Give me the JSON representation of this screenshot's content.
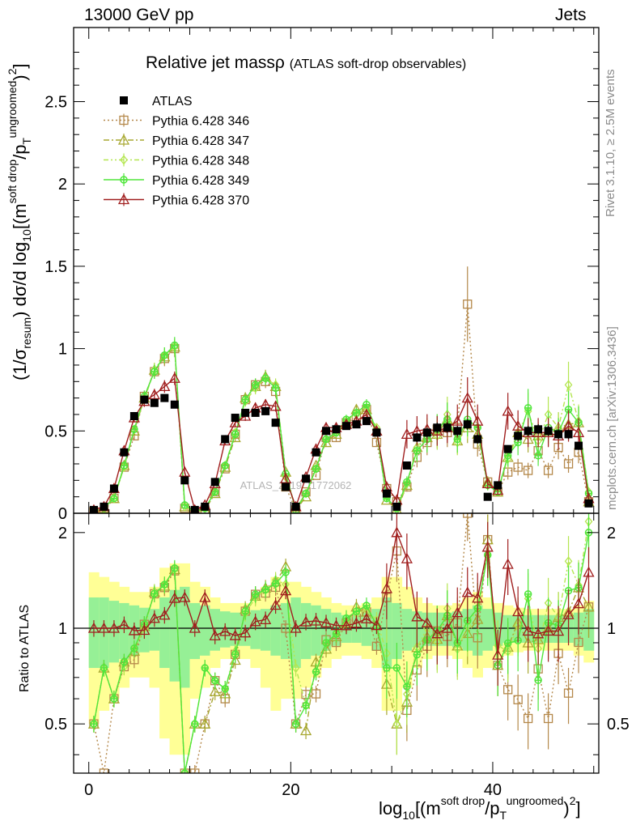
{
  "header": {
    "energy": "13000 GeV pp",
    "process": "Jets",
    "rivet": "Rivet 3.1.10, ≥ 2.5M events",
    "mcplots": "mcplots.cern.ch [arXiv:1306.3436]"
  },
  "chart_data": {
    "type": "line",
    "title": "Relative jet massρ",
    "subtitle": "(ATLAS soft-drop observables)",
    "watermark": "ATLAS_2019_I1772062",
    "ylabel_top": "(1/σ_resum) dσ/d log10[(m^soft drop/p_T^ungroomed)^2]",
    "ylabel_ratio": "Ratio to ATLAS",
    "xlabel": "log10[(m^soft drop/p_T^ungroomed)^2]",
    "xlim": [
      -1.5,
      50.5
    ],
    "ylim_top": [
      0,
      2.95
    ],
    "ylim_ratio": [
      0.35,
      2.3
    ],
    "ratio_scale": "log",
    "x_ticks": [
      "0",
      "20",
      "40"
    ],
    "y_ticks_top": [
      "0",
      "0.5",
      "1",
      "1.5",
      "2",
      "2.5"
    ],
    "y_ticks_ratio": [
      "0.5",
      "1",
      "2"
    ],
    "legend_position": "top-left",
    "x": [
      0.5,
      1.5,
      2.5,
      3.5,
      4.5,
      5.5,
      6.5,
      7.5,
      8.5,
      9.5,
      10.5,
      11.5,
      12.5,
      13.5,
      14.5,
      15.5,
      16.5,
      17.5,
      18.5,
      19.5,
      20.5,
      21.5,
      22.5,
      23.5,
      24.5,
      25.5,
      26.5,
      27.5,
      28.5,
      29.5,
      30.5,
      31.5,
      32.5,
      33.5,
      34.5,
      35.5,
      36.5,
      37.5,
      38.5,
      39.5,
      40.5,
      41.5,
      42.5,
      43.5,
      44.5,
      45.5,
      46.5,
      47.5,
      48.5,
      49.5
    ],
    "series": [
      {
        "name": "ATLAS",
        "color": "#000000",
        "marker": "square-filled",
        "dash": "none",
        "values": [
          0.02,
          0.04,
          0.15,
          0.37,
          0.59,
          0.69,
          0.67,
          0.7,
          0.66,
          0.2,
          0.02,
          0.04,
          0.19,
          0.45,
          0.58,
          0.61,
          0.61,
          0.62,
          0.55,
          0.16,
          0.04,
          0.21,
          0.37,
          0.5,
          0.51,
          0.53,
          0.54,
          0.56,
          0.49,
          0.12,
          0.04,
          0.29,
          0.46,
          0.49,
          0.52,
          0.52,
          0.5,
          0.54,
          0.45,
          0.1,
          0.17,
          0.39,
          0.47,
          0.5,
          0.51,
          0.5,
          0.48,
          0.48,
          0.41,
          0.06
        ]
      },
      {
        "name": "Pythia 6.428 346",
        "color": "#b4884a",
        "marker": "square-open",
        "dash": "2,3",
        "values": [
          0.01,
          0.01,
          0.09,
          0.28,
          0.47,
          0.71,
          0.86,
          0.94,
          1.0,
          0.03,
          0.007,
          0.02,
          0.13,
          0.27,
          0.48,
          0.69,
          0.78,
          0.8,
          0.74,
          0.16,
          0.02,
          0.13,
          0.23,
          0.46,
          0.46,
          0.55,
          0.58,
          0.63,
          0.43,
          0.15,
          0.07,
          0.16,
          0.34,
          0.43,
          0.51,
          0.49,
          0.52,
          1.27,
          0.42,
          0.19,
          0.13,
          0.25,
          0.28,
          0.26,
          0.38,
          0.26,
          0.4,
          0.3,
          0.37,
          0.07
        ]
      },
      {
        "name": "Pythia 6.428 347",
        "color": "#a8a832",
        "marker": "triangle-open",
        "dash": "7,3,2,3",
        "values": [
          0.01,
          0.03,
          0.09,
          0.29,
          0.5,
          0.7,
          0.87,
          0.95,
          1.01,
          0.04,
          0.01,
          0.02,
          0.12,
          0.28,
          0.46,
          0.7,
          0.77,
          0.83,
          0.77,
          0.25,
          0.02,
          0.1,
          0.29,
          0.43,
          0.48,
          0.55,
          0.63,
          0.63,
          0.5,
          0.08,
          0.02,
          0.17,
          0.4,
          0.46,
          0.48,
          0.57,
          0.44,
          0.52,
          0.48,
          0.19,
          0.13,
          0.34,
          0.49,
          0.45,
          0.47,
          0.5,
          0.52,
          0.54,
          0.55,
          0.07
        ]
      },
      {
        "name": "Pythia 6.428 348",
        "color": "#b4e650",
        "marker": "diamond-open",
        "dash": "6,3,2,3,2,3",
        "values": [
          0.01,
          0.03,
          0.09,
          0.28,
          0.51,
          0.69,
          0.87,
          0.96,
          1.01,
          0.04,
          0.01,
          0.03,
          0.13,
          0.29,
          0.49,
          0.68,
          0.76,
          0.82,
          0.78,
          0.22,
          0.03,
          0.12,
          0.27,
          0.45,
          0.49,
          0.56,
          0.6,
          0.64,
          0.52,
          0.1,
          0.02,
          0.18,
          0.4,
          0.49,
          0.47,
          0.6,
          0.43,
          0.55,
          0.52,
          0.17,
          0.15,
          0.33,
          0.48,
          0.62,
          0.44,
          0.6,
          0.52,
          0.78,
          0.56,
          0.13
        ]
      },
      {
        "name": "Pythia 6.428 349",
        "color": "#50e63c",
        "marker": "plus-circle",
        "dash": "none",
        "values": [
          0.01,
          0.03,
          0.09,
          0.29,
          0.51,
          0.71,
          0.86,
          0.96,
          1.02,
          0.05,
          0.01,
          0.03,
          0.13,
          0.29,
          0.48,
          0.69,
          0.78,
          0.82,
          0.76,
          0.24,
          0.02,
          0.12,
          0.27,
          0.45,
          0.49,
          0.57,
          0.61,
          0.66,
          0.5,
          0.09,
          0.03,
          0.19,
          0.38,
          0.45,
          0.51,
          0.57,
          0.45,
          0.57,
          0.52,
          0.17,
          0.13,
          0.35,
          0.43,
          0.64,
          0.35,
          0.52,
          0.49,
          0.63,
          0.55,
          0.12
        ]
      },
      {
        "name": "Pythia 6.428 370",
        "color": "#a01e1e",
        "marker": "triangle-open",
        "dash": "none",
        "values": [
          0.02,
          0.04,
          0.15,
          0.38,
          0.58,
          0.68,
          0.72,
          0.77,
          0.82,
          0.25,
          0.02,
          0.05,
          0.18,
          0.44,
          0.55,
          0.59,
          0.64,
          0.66,
          0.65,
          0.21,
          0.04,
          0.22,
          0.39,
          0.52,
          0.52,
          0.54,
          0.56,
          0.6,
          0.5,
          0.16,
          0.08,
          0.48,
          0.5,
          0.51,
          0.5,
          0.52,
          0.56,
          0.7,
          0.56,
          0.18,
          0.14,
          0.62,
          0.53,
          0.49,
          0.49,
          0.49,
          0.47,
          0.53,
          0.49,
          0.09
        ]
      }
    ],
    "ratio_band": {
      "inner": [
        0.25,
        0.25,
        0.22,
        0.2,
        0.18,
        0.16,
        0.15,
        0.25,
        0.32,
        0.35,
        0.2,
        0.18,
        0.15,
        0.13,
        0.12,
        0.12,
        0.14,
        0.15,
        0.18,
        0.2,
        0.25,
        0.2,
        0.18,
        0.15,
        0.12,
        0.1,
        0.1,
        0.12,
        0.15,
        0.25,
        0.2,
        0.15,
        0.13,
        0.12,
        0.12,
        0.12,
        0.13,
        0.15,
        0.18,
        0.15,
        0.12,
        0.1,
        0.1,
        0.1,
        0.1,
        0.1,
        0.1,
        0.1,
        0.12,
        0.15
      ],
      "outer": [
        0.5,
        0.45,
        0.4,
        0.35,
        0.3,
        0.3,
        0.35,
        0.55,
        0.6,
        0.6,
        0.4,
        0.35,
        0.25,
        0.2,
        0.2,
        0.2,
        0.25,
        0.35,
        0.45,
        0.4,
        0.4,
        0.35,
        0.3,
        0.25,
        0.2,
        0.18,
        0.18,
        0.2,
        0.25,
        0.45,
        0.45,
        0.35,
        0.25,
        0.2,
        0.18,
        0.18,
        0.2,
        0.25,
        0.3,
        0.25,
        0.2,
        0.18,
        0.16,
        0.15,
        0.15,
        0.15,
        0.15,
        0.15,
        0.18,
        0.22
      ]
    }
  }
}
